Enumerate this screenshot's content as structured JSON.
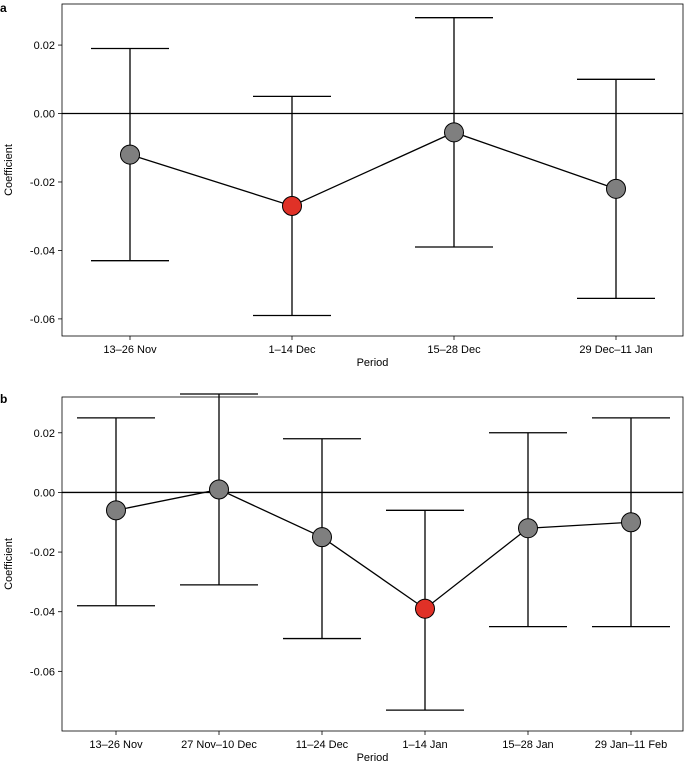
{
  "chart_data": [
    {
      "panel_label": "a",
      "type": "scatter",
      "xlabel": "Period",
      "ylabel": "Coefficient",
      "categories": [
        "13–26 Nov",
        "1–14 Dec",
        "15–28 Dec",
        "29 Dec–11 Jan"
      ],
      "ylim": [
        -0.065,
        0.032
      ],
      "yticks": [
        0.02,
        0.0,
        -0.02,
        -0.04,
        -0.06
      ],
      "ytick_labels": [
        "0.02",
        "0.00",
        "-0.02",
        "-0.04",
        "-0.06"
      ],
      "reference_line": 0,
      "points": [
        {
          "value": -0.012,
          "ci_low": -0.043,
          "ci_high": 0.019,
          "highlight": false
        },
        {
          "value": -0.027,
          "ci_low": -0.059,
          "ci_high": 0.005,
          "highlight": true
        },
        {
          "value": -0.0055,
          "ci_low": -0.039,
          "ci_high": 0.028,
          "highlight": false
        },
        {
          "value": -0.022,
          "ci_low": -0.054,
          "ci_high": 0.01,
          "highlight": false
        }
      ],
      "colors": {
        "point": "#7f7f7f",
        "highlight": "#e03127",
        "line": "#000000"
      }
    },
    {
      "panel_label": "b",
      "type": "scatter",
      "xlabel": "Period",
      "ylabel": "Coefficient",
      "categories": [
        "13–26 Nov",
        "27 Nov–10 Dec",
        "11–24 Dec",
        "1–14 Jan",
        "15–28 Jan",
        "29 Jan–11 Feb"
      ],
      "ylim": [
        -0.08,
        0.032
      ],
      "yticks": [
        0.02,
        0.0,
        -0.02,
        -0.04,
        -0.06
      ],
      "ytick_labels": [
        "0.02",
        "0.00",
        "-0.02",
        "-0.04",
        "-0.06"
      ],
      "reference_line": 0,
      "points": [
        {
          "value": -0.006,
          "ci_low": -0.038,
          "ci_high": 0.025,
          "highlight": false
        },
        {
          "value": 0.001,
          "ci_low": -0.031,
          "ci_high": 0.033,
          "highlight": false
        },
        {
          "value": -0.015,
          "ci_low": -0.049,
          "ci_high": 0.018,
          "highlight": false
        },
        {
          "value": -0.039,
          "ci_low": -0.073,
          "ci_high": -0.006,
          "highlight": true
        },
        {
          "value": -0.012,
          "ci_low": -0.045,
          "ci_high": 0.02,
          "highlight": false
        },
        {
          "value": -0.01,
          "ci_low": -0.045,
          "ci_high": 0.025,
          "highlight": false
        }
      ],
      "colors": {
        "point": "#7f7f7f",
        "highlight": "#e03127",
        "line": "#000000"
      }
    }
  ]
}
